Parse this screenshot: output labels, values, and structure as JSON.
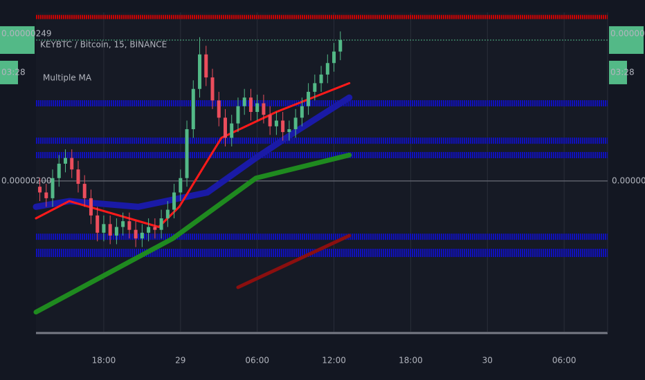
{
  "chart_data": {
    "type": "candlestick",
    "title": "KEYBTC / Bitcoin, 15, BINANCE",
    "subtitle": "Multiple MA",
    "countdown": "03:28",
    "last_price": {
      "value": 2.49e-06,
      "label": "0.00000249"
    },
    "up_color": "#53b987",
    "down_color": "#eb4d5c",
    "x": [
      13,
      13.5,
      14,
      14.5,
      15,
      15.5,
      16,
      16.5,
      17,
      17.5,
      18,
      18.5,
      19,
      19.5,
      20,
      20.5,
      21,
      21.5,
      22,
      22.5,
      23,
      23.5,
      24,
      24.5,
      25,
      25.5,
      26,
      26.5,
      27,
      27.5,
      28,
      28.5,
      29,
      29.5,
      30,
      30.5,
      31,
      31.5,
      32,
      32.5,
      33,
      33.5,
      34,
      34.5,
      35,
      35.5,
      36,
      36.5
    ],
    "open": [
      1.98e-06,
      1.96e-06,
      1.94e-06,
      2.01e-06,
      2.06e-06,
      2.08e-06,
      2.04e-06,
      1.99e-06,
      1.94e-06,
      1.88e-06,
      1.82e-06,
      1.85e-06,
      1.81e-06,
      1.84e-06,
      1.86e-06,
      1.83e-06,
      1.8e-06,
      1.82e-06,
      1.84e-06,
      1.83e-06,
      1.87e-06,
      1.9e-06,
      1.96e-06,
      2.01e-06,
      2.18e-06,
      2.32e-06,
      2.44e-06,
      2.36e-06,
      2.28e-06,
      2.22e-06,
      2.15e-06,
      2.2e-06,
      2.26e-06,
      2.29e-06,
      2.24e-06,
      2.27e-06,
      2.23e-06,
      2.19e-06,
      2.21e-06,
      2.17e-06,
      2.18e-06,
      2.22e-06,
      2.26e-06,
      2.31e-06,
      2.34e-06,
      2.37e-06,
      2.41e-06,
      2.45e-06
    ],
    "high": [
      2.01e-06,
      1.99e-06,
      2.04e-06,
      2.09e-06,
      2.11e-06,
      2.11e-06,
      2.07e-06,
      2.02e-06,
      1.97e-06,
      1.91e-06,
      1.88e-06,
      1.88e-06,
      1.87e-06,
      1.89e-06,
      1.89e-06,
      1.86e-06,
      1.85e-06,
      1.87e-06,
      1.87e-06,
      1.9e-06,
      1.93e-06,
      1.99e-06,
      2.04e-06,
      2.21e-06,
      2.35e-06,
      2.5e-06,
      2.47e-06,
      2.39e-06,
      2.31e-06,
      2.25e-06,
      2.23e-06,
      2.29e-06,
      2.32e-06,
      2.32e-06,
      2.3e-06,
      2.3e-06,
      2.26e-06,
      2.24e-06,
      2.24e-06,
      2.21e-06,
      2.25e-06,
      2.29e-06,
      2.34e-06,
      2.37e-06,
      2.4e-06,
      2.44e-06,
      2.48e-06,
      2.52e-06
    ],
    "low": [
      1.93e-06,
      1.91e-06,
      1.91e-06,
      1.98e-06,
      2.03e-06,
      2.01e-06,
      1.96e-06,
      1.91e-06,
      1.85e-06,
      1.79e-06,
      1.79e-06,
      1.78e-06,
      1.78e-06,
      1.81e-06,
      1.8e-06,
      1.77e-06,
      1.77e-06,
      1.79e-06,
      1.8e-06,
      1.8e-06,
      1.84e-06,
      1.87e-06,
      1.93e-06,
      1.98e-06,
      2.15e-06,
      2.29e-06,
      2.33e-06,
      2.25e-06,
      2.19e-06,
      2.12e-06,
      2.12e-06,
      2.17e-06,
      2.23e-06,
      2.21e-06,
      2.21e-06,
      2.2e-06,
      2.16e-06,
      2.16e-06,
      2.14e-06,
      2.14e-06,
      2.15e-06,
      2.19e-06,
      2.23e-06,
      2.28e-06,
      2.31e-06,
      2.34e-06,
      2.38e-06,
      2.42e-06
    ],
    "close": [
      1.96e-06,
      1.94e-06,
      2.01e-06,
      2.06e-06,
      2.08e-06,
      2.04e-06,
      1.99e-06,
      1.94e-06,
      1.88e-06,
      1.82e-06,
      1.85e-06,
      1.81e-06,
      1.84e-06,
      1.86e-06,
      1.83e-06,
      1.8e-06,
      1.82e-06,
      1.84e-06,
      1.83e-06,
      1.87e-06,
      1.9e-06,
      1.96e-06,
      2.01e-06,
      2.18e-06,
      2.32e-06,
      2.44e-06,
      2.36e-06,
      2.28e-06,
      2.22e-06,
      2.15e-06,
      2.2e-06,
      2.26e-06,
      2.29e-06,
      2.24e-06,
      2.27e-06,
      2.23e-06,
      2.19e-06,
      2.21e-06,
      2.17e-06,
      2.18e-06,
      2.22e-06,
      2.26e-06,
      2.31e-06,
      2.34e-06,
      2.37e-06,
      2.41e-06,
      2.45e-06,
      2.49e-06
    ],
    "lines": [
      {
        "color": "#1a1aa6",
        "x": [
          12.7,
          15.3,
          20.7,
          26.1,
          29.9,
          32.6,
          37.2
        ],
        "values": [
          1.91e-06,
          1.93e-06,
          1.91e-06,
          1.96e-06,
          2.08e-06,
          2.16e-06,
          2.29e-06
        ]
      },
      {
        "color": "#1f8a1f",
        "x": [
          12.7,
          23.4,
          29.9,
          37.2
        ],
        "values": [
          1.544e-06,
          1.8e-06,
          2.01e-06,
          2.09e-06
        ]
      },
      {
        "color": "#8b0f0f",
        "x": [
          28.5,
          37.2
        ],
        "values": [
          1.63e-06,
          1.81e-06
        ]
      },
      {
        "color": "#ff1a1a",
        "x": [
          12.7,
          15.3,
          22.3,
          23.9,
          27.2,
          31.5,
          37.2
        ],
        "values": [
          1.87e-06,
          1.93e-06,
          1.84e-06,
          1.91e-06,
          2.15e-06,
          2.24e-06,
          2.34e-06
        ]
      }
    ],
    "levels": [
      {
        "value": 2.57e-06,
        "color": "#e00000"
      },
      {
        "value": 2.27e-06,
        "color": "#1010cc"
      },
      {
        "value": 2.14e-06,
        "color": "#1010cc"
      },
      {
        "value": 2.09e-06,
        "color": "#1010cc"
      },
      {
        "value": 1.806e-06,
        "color": "#1010cc"
      },
      {
        "value": 1.75e-06,
        "color": "#1010cc"
      }
    ],
    "xlim": [
      12.7,
      57.4
    ],
    "xticks": [
      {
        "value": 18,
        "label": "18:00"
      },
      {
        "value": 24,
        "label": "29"
      },
      {
        "value": 30,
        "label": "06:00"
      },
      {
        "value": 36,
        "label": "12:00"
      },
      {
        "value": 42,
        "label": "18:00"
      },
      {
        "value": 48,
        "label": "30"
      },
      {
        "value": 54,
        "label": "06:00"
      }
    ],
    "ylim": [
      1.476e-06,
      2.586e-06
    ],
    "yticks": [
      {
        "value": 2e-06,
        "label": "0.00000200"
      }
    ],
    "grid": true
  }
}
